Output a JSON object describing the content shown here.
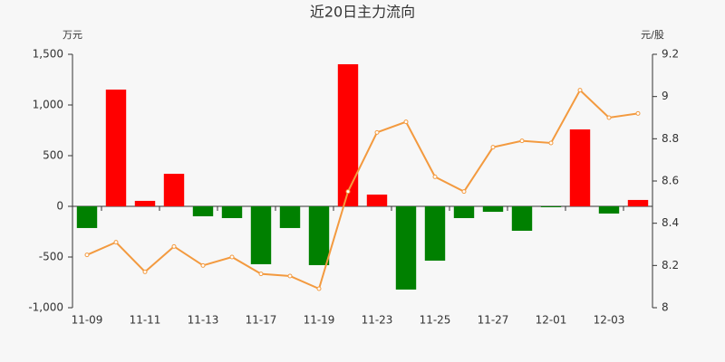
{
  "chart_data": {
    "type": "bar_line",
    "title": "近20日主力流向",
    "y_label": "万元",
    "y2_label": "元/股",
    "categories": [
      "11-09",
      null,
      "11-11",
      null,
      "11-13",
      null,
      "11-17",
      null,
      "11-19",
      null,
      "11-23",
      null,
      "11-25",
      null,
      "11-27",
      null,
      "12-01",
      null,
      "12-03",
      null
    ],
    "series": [
      {
        "type": "bar",
        "color": "#ff0000",
        "negative_color": "#008000",
        "values": [
          -214,
          1152,
          54,
          321,
          -98,
          -116,
          -571,
          -214,
          -580,
          1402,
          116,
          -821,
          -536,
          -116,
          -54,
          -241,
          -5,
          759,
          -71,
          63
        ]
      },
      {
        "type": "line",
        "axis": "y2",
        "color": "#f39a3f",
        "values": [
          8.25,
          8.31,
          8.17,
          8.29,
          8.2,
          8.24,
          8.16,
          8.15,
          8.09,
          8.55,
          8.83,
          8.88,
          8.62,
          8.55,
          8.76,
          8.79,
          8.78,
          9.03,
          8.9,
          8.92
        ]
      }
    ],
    "ylim": [
      -1000,
      1500
    ],
    "yticks": [
      {
        "value": -1000,
        "label": "-1,000"
      },
      -500,
      0,
      500,
      {
        "value": 1000,
        "label": "1,000"
      },
      {
        "value": 1500,
        "label": "1,500"
      }
    ],
    "y2lim": [
      8,
      9.2
    ],
    "y2ticks": [
      8,
      8.2,
      8.4,
      8.6,
      8.8,
      9,
      9.2
    ]
  }
}
